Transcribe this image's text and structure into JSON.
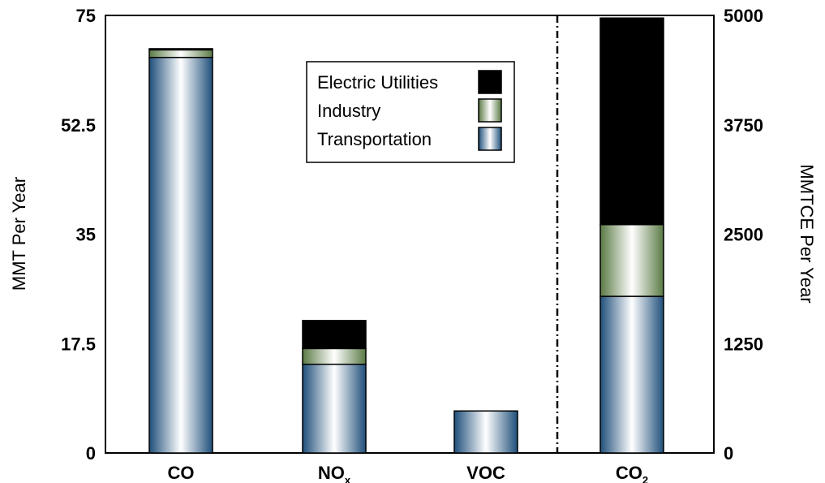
{
  "chart_data": {
    "type": "bar",
    "stacked": true,
    "grid": false,
    "legend_position": "top-center",
    "categories": [
      {
        "label": "CO",
        "subscript": "",
        "axis": "left"
      },
      {
        "label": "NO",
        "subscript": "x",
        "axis": "left"
      },
      {
        "label": "VOC",
        "subscript": "",
        "axis": "left"
      },
      {
        "label": "CO",
        "subscript": "2",
        "axis": "right"
      }
    ],
    "series": [
      {
        "name": "Transportation",
        "values": [
          67.8,
          15.2,
          7.2,
          1790
        ],
        "color": "#1f4f7a"
      },
      {
        "name": "Industry",
        "values": [
          1.3,
          2.7,
          0,
          820
        ],
        "color": "#5a7a44"
      },
      {
        "name": "Electric Utilities",
        "values": [
          0.2,
          4.8,
          0,
          2360
        ],
        "color": "#b5203b"
      }
    ],
    "legend_order": [
      "Electric Utilities",
      "Industry",
      "Transportation"
    ],
    "left_axis": {
      "label": "MMT Per Year",
      "ylim": [
        0,
        75
      ],
      "ticks": [
        "0",
        "17.5",
        "35",
        "52.5",
        "75"
      ]
    },
    "right_axis": {
      "label": "MMTCE Per Year",
      "ylim": [
        0,
        5000
      ],
      "ticks": [
        "0",
        "1250",
        "2500",
        "3750",
        "5000"
      ]
    },
    "divider": "dash-dot line between VOC and CO2"
  }
}
